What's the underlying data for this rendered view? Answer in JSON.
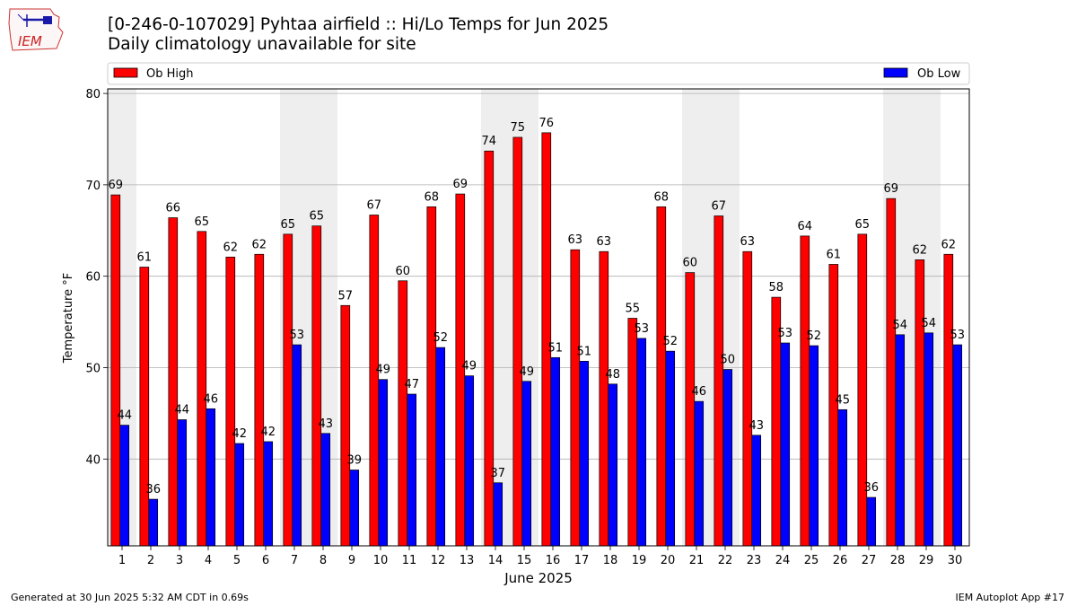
{
  "logo": {
    "text": "IEM"
  },
  "title": {
    "line1": "[0-246-0-107029] Pyhtaa airfield :: Hi/Lo Temps for Jun 2025",
    "line2": "Daily climatology unavailable for site"
  },
  "footer": {
    "left": "Generated at 30 Jun 2025 5:32 AM CDT in 0.69s",
    "right": "IEM Autoplot App #17"
  },
  "colors": {
    "high": "#ff0000",
    "low": "#0000ff",
    "weekend_band": "#eeeeee",
    "grid": "#b0b0b0"
  },
  "chart_data": {
    "type": "bar",
    "xlabel": "June 2025",
    "ylabel": "Temperature °F",
    "ylim": [
      30.5,
      80.5
    ],
    "yticks": [
      40,
      50,
      60,
      70,
      80
    ],
    "grid": true,
    "legend_placement": "top",
    "categories": [
      1,
      2,
      3,
      4,
      5,
      6,
      7,
      8,
      9,
      10,
      11,
      12,
      13,
      14,
      15,
      16,
      17,
      18,
      19,
      20,
      21,
      22,
      23,
      24,
      25,
      26,
      27,
      28,
      29,
      30
    ],
    "shaded_days": [
      1,
      7,
      8,
      14,
      15,
      21,
      22,
      28,
      29
    ],
    "series": [
      {
        "name": "Ob High",
        "color": "#ff0000",
        "values": [
          68.9,
          61.0,
          66.4,
          64.9,
          62.1,
          62.4,
          64.6,
          65.5,
          56.8,
          66.7,
          59.5,
          67.6,
          69.0,
          73.7,
          75.2,
          75.7,
          62.9,
          62.7,
          55.4,
          67.6,
          60.4,
          66.6,
          62.7,
          57.7,
          64.4,
          61.3,
          64.6,
          68.5,
          61.8,
          62.4
        ],
        "labels": [
          69,
          61,
          66,
          65,
          62,
          62,
          65,
          65,
          57,
          67,
          60,
          68,
          69,
          74,
          75,
          76,
          63,
          63,
          55,
          68,
          60,
          67,
          63,
          58,
          64,
          61,
          65,
          69,
          62,
          62
        ]
      },
      {
        "name": "Ob Low",
        "color": "#0000ff",
        "values": [
          43.7,
          35.6,
          44.3,
          45.5,
          41.7,
          41.9,
          52.5,
          42.8,
          38.8,
          48.7,
          47.1,
          52.2,
          49.1,
          37.4,
          48.5,
          51.1,
          50.7,
          48.2,
          53.2,
          51.8,
          46.3,
          49.8,
          42.6,
          52.7,
          52.4,
          45.4,
          35.8,
          53.6,
          53.8,
          52.5
        ],
        "labels": [
          44,
          36,
          44,
          46,
          42,
          42,
          53,
          43,
          39,
          49,
          47,
          52,
          49,
          37,
          49,
          51,
          51,
          48,
          53,
          52,
          46,
          50,
          43,
          53,
          52,
          45,
          36,
          54,
          54,
          53
        ]
      }
    ]
  }
}
